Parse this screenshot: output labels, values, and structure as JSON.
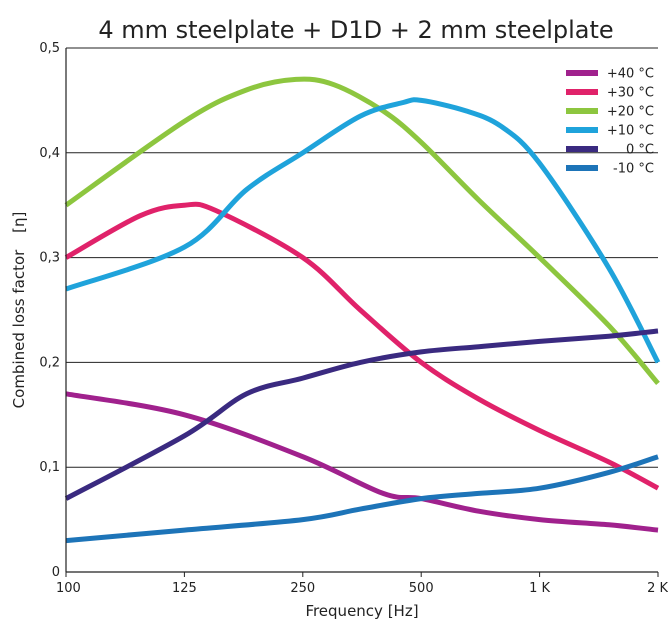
{
  "chart_data": {
    "type": "line",
    "title": "4 mm steelplate + D1D + 2 mm steelplate",
    "xlabel": "Frequency [Hz]",
    "ylabel": "Combined loss factor",
    "ylabel_symbol": "[η]",
    "x_ticks": [
      "100",
      "125",
      "250",
      "500",
      "1 K",
      "2 K"
    ],
    "y_ticks": [
      "0",
      "0,1",
      "0,2",
      "0,3",
      "0,4",
      "0,5"
    ],
    "y_range": [
      0,
      0.5
    ],
    "grid": "horizontal",
    "legend_position": "top-right",
    "series": [
      {
        "name": "+40 °C",
        "color": "#a0218d",
        "points": [
          [
            100,
            0.17
          ],
          [
            125,
            0.15
          ],
          [
            250,
            0.11
          ],
          [
            400,
            0.075
          ],
          [
            500,
            0.07
          ],
          [
            700,
            0.058
          ],
          [
            1000,
            0.05
          ],
          [
            1500,
            0.045
          ],
          [
            2000,
            0.04
          ]
        ]
      },
      {
        "name": "+30 °C",
        "color": "#e0226a",
        "points": [
          [
            100,
            0.3
          ],
          [
            115,
            0.34
          ],
          [
            125,
            0.35
          ],
          [
            150,
            0.345
          ],
          [
            250,
            0.3
          ],
          [
            350,
            0.25
          ],
          [
            500,
            0.2
          ],
          [
            700,
            0.165
          ],
          [
            1000,
            0.135
          ],
          [
            1500,
            0.105
          ],
          [
            2000,
            0.08
          ]
        ]
      },
      {
        "name": "+20 °C",
        "color": "#8dc63f",
        "points": [
          [
            100,
            0.35
          ],
          [
            125,
            0.43
          ],
          [
            180,
            0.46
          ],
          [
            240,
            0.47
          ],
          [
            300,
            0.465
          ],
          [
            400,
            0.44
          ],
          [
            500,
            0.41
          ],
          [
            700,
            0.355
          ],
          [
            1000,
            0.3
          ],
          [
            1500,
            0.235
          ],
          [
            2000,
            0.18
          ]
        ]
      },
      {
        "name": "+10 °C",
        "color": "#1fa3db",
        "points": [
          [
            100,
            0.27
          ],
          [
            125,
            0.31
          ],
          [
            180,
            0.365
          ],
          [
            250,
            0.4
          ],
          [
            350,
            0.435
          ],
          [
            450,
            0.448
          ],
          [
            500,
            0.45
          ],
          [
            650,
            0.44
          ],
          [
            800,
            0.425
          ],
          [
            1000,
            0.39
          ],
          [
            1500,
            0.29
          ],
          [
            2000,
            0.2
          ]
        ]
      },
      {
        "name": "0 °C",
        "color": "#3a2a80",
        "points": [
          [
            100,
            0.07
          ],
          [
            125,
            0.13
          ],
          [
            180,
            0.17
          ],
          [
            250,
            0.185
          ],
          [
            350,
            0.2
          ],
          [
            500,
            0.21
          ],
          [
            700,
            0.215
          ],
          [
            1000,
            0.22
          ],
          [
            1500,
            0.225
          ],
          [
            2000,
            0.23
          ]
        ]
      },
      {
        "name": "-10 °C",
        "color": "#1d74b8",
        "points": [
          [
            100,
            0.03
          ],
          [
            125,
            0.04
          ],
          [
            250,
            0.05
          ],
          [
            350,
            0.06
          ],
          [
            500,
            0.07
          ],
          [
            700,
            0.075
          ],
          [
            1000,
            0.08
          ],
          [
            1500,
            0.095
          ],
          [
            2000,
            0.11
          ]
        ]
      }
    ]
  }
}
